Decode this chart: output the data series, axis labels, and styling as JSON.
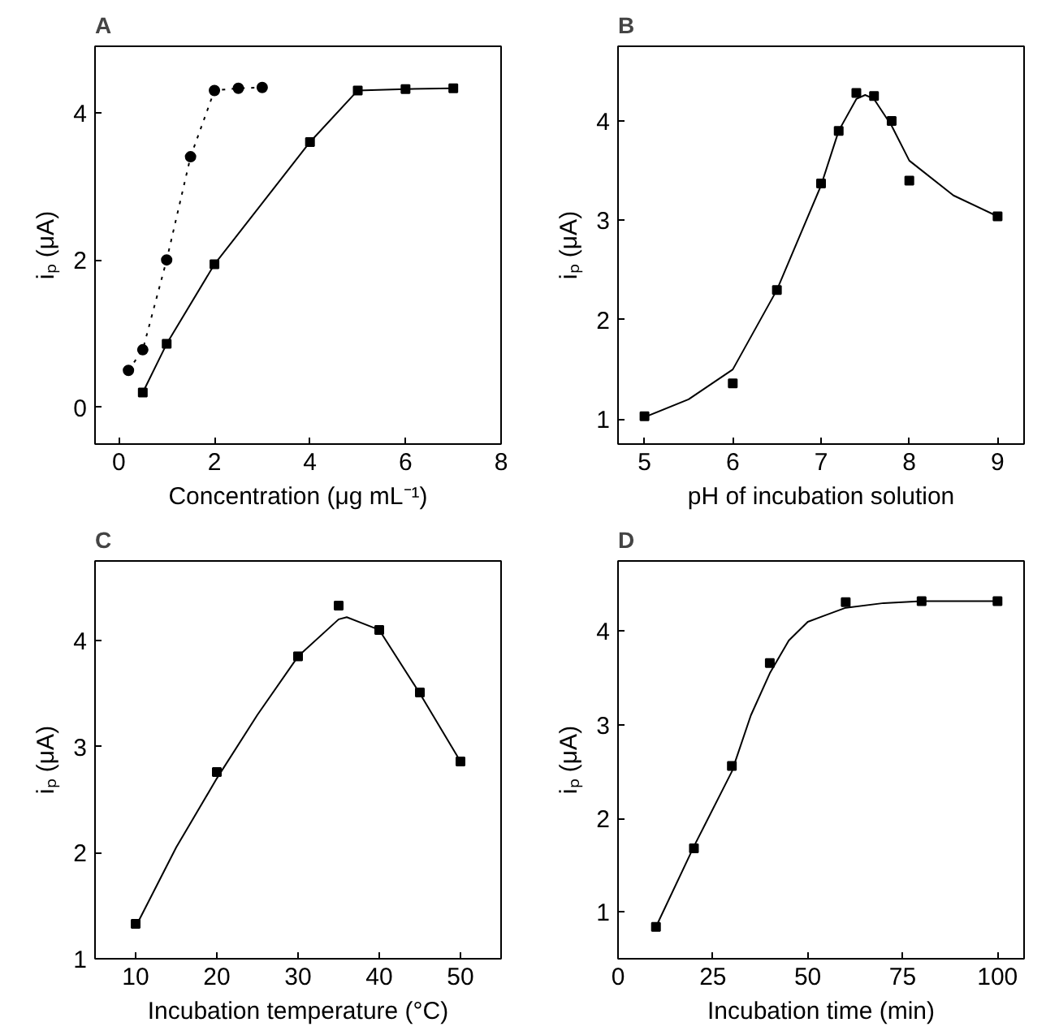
{
  "chart_data": [
    {
      "type": "line",
      "title": "A",
      "xlabel": "Concentration (μg mL⁻¹)",
      "ylabel": "iₚ (μA)",
      "xlim": [
        -0.5,
        8
      ],
      "ylim": [
        -0.5,
        4.9
      ],
      "xticks": [
        0,
        2,
        4,
        6,
        8
      ],
      "yticks": [
        0,
        2,
        4
      ],
      "grid": false,
      "series": [
        {
          "color": "#000000",
          "marker": "circle",
          "line_style": "dotted",
          "x": [
            0.2,
            0.5,
            1,
            1.5,
            2,
            2.5,
            3
          ],
          "values": [
            0.5,
            0.78,
            2.0,
            3.4,
            4.3,
            4.33,
            4.34
          ]
        },
        {
          "color": "#000000",
          "marker": "square",
          "line_style": "solid",
          "x": [
            0.5,
            1,
            2,
            4,
            5,
            6,
            7
          ],
          "values": [
            0.2,
            0.86,
            1.94,
            3.6,
            4.3,
            4.32,
            4.33
          ]
        }
      ]
    },
    {
      "type": "scatter",
      "title": "B",
      "xlabel": "pH of incubation solution",
      "ylabel": "iₚ (μA)",
      "xlim": [
        4.7,
        9.3
      ],
      "ylim": [
        0.75,
        4.75
      ],
      "xticks": [
        5,
        6,
        7,
        8,
        9
      ],
      "yticks": [
        1,
        2,
        3,
        4
      ],
      "grid": false,
      "series": [
        {
          "type": "scatter",
          "color": "#000000",
          "marker": "square",
          "x": [
            5,
            6,
            6.5,
            7,
            7.2,
            7.4,
            7.6,
            7.8,
            8,
            9
          ],
          "values": [
            1.03,
            1.36,
            2.3,
            3.37,
            3.9,
            4.28,
            4.25,
            4.0,
            3.4,
            3.04
          ]
        },
        {
          "type": "line",
          "color": "#000000",
          "marker": "none",
          "line_style": "solid",
          "x": [
            5,
            5.5,
            6,
            6.5,
            7,
            7.2,
            7.4,
            7.5,
            7.6,
            7.8,
            8,
            8.5,
            9
          ],
          "values": [
            1.02,
            1.2,
            1.5,
            2.3,
            3.35,
            3.9,
            4.22,
            4.26,
            4.22,
            3.95,
            3.6,
            3.25,
            3.04
          ]
        }
      ]
    },
    {
      "type": "scatter",
      "title": "C",
      "xlabel": "Incubation temperature (°C)",
      "ylabel": "iₚ (μA)",
      "xlim": [
        5,
        55
      ],
      "ylim": [
        1,
        4.75
      ],
      "xticks": [
        10,
        20,
        30,
        40,
        50
      ],
      "yticks": [
        1,
        2,
        3,
        4
      ],
      "grid": false,
      "series": [
        {
          "type": "scatter",
          "color": "#000000",
          "marker": "square",
          "x": [
            10,
            20,
            30,
            35,
            40,
            45,
            50
          ],
          "values": [
            1.33,
            2.76,
            3.85,
            4.33,
            4.1,
            3.51,
            2.86
          ]
        },
        {
          "type": "line",
          "color": "#000000",
          "marker": "none",
          "line_style": "solid",
          "x": [
            10,
            15,
            20,
            25,
            30,
            35,
            36,
            40,
            45,
            50
          ],
          "values": [
            1.3,
            2.05,
            2.7,
            3.3,
            3.85,
            4.2,
            4.22,
            4.1,
            3.5,
            2.86
          ]
        }
      ]
    },
    {
      "type": "scatter",
      "title": "D",
      "xlabel": "Incubation time (min)",
      "ylabel": "iₚ (μA)",
      "xlim": [
        0,
        107
      ],
      "ylim": [
        0.5,
        4.75
      ],
      "xticks": [
        0,
        25,
        50,
        75,
        100
      ],
      "yticks": [
        1,
        2,
        3,
        4
      ],
      "grid": false,
      "series": [
        {
          "type": "scatter",
          "color": "#000000",
          "marker": "square",
          "x": [
            10,
            20,
            30,
            40,
            60,
            80,
            100
          ],
          "values": [
            0.84,
            1.68,
            2.56,
            3.66,
            4.31,
            4.32,
            4.32
          ]
        },
        {
          "type": "line",
          "color": "#000000",
          "marker": "none",
          "line_style": "solid",
          "x": [
            10,
            20,
            30,
            35,
            40,
            45,
            50,
            60,
            70,
            80,
            100
          ],
          "values": [
            0.84,
            1.7,
            2.5,
            3.1,
            3.55,
            3.9,
            4.1,
            4.25,
            4.3,
            4.32,
            4.32
          ]
        }
      ]
    }
  ]
}
